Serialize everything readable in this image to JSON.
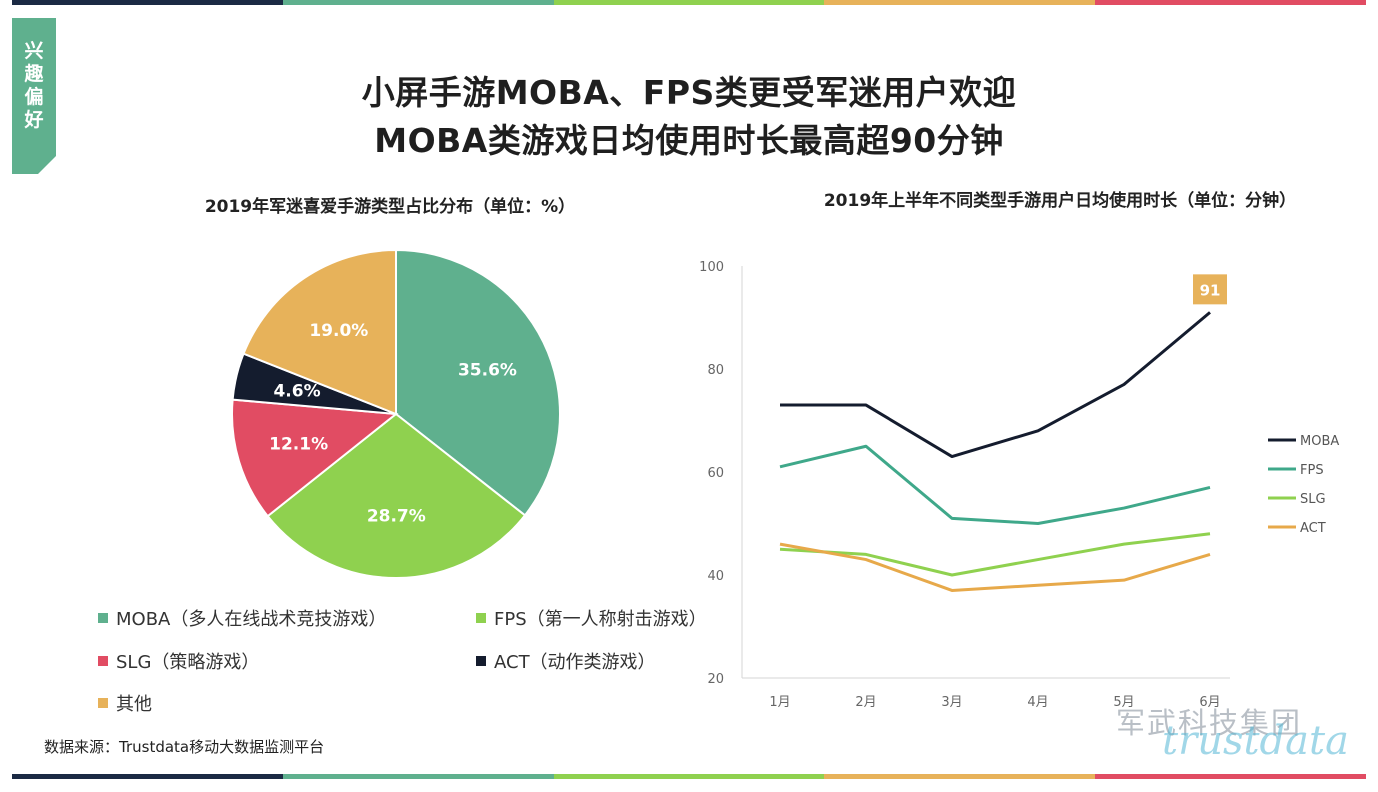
{
  "stripe_colors": [
    "#1b2a44",
    "#5fb08e",
    "#8fd14f",
    "#e7b25a",
    "#e14c63"
  ],
  "side_tab": {
    "label": "兴\n趣\n偏\n好",
    "color": "#5fb08e"
  },
  "title_line1": "小屏手游MOBA、FPS类更受军迷用户欢迎",
  "title_line2": "MOBA类游戏日均使用时长最高超90分钟",
  "footer": "数据来源：Trustdata移动大数据监测平台",
  "watermark": {
    "cn": "军武科技集团",
    "en": "trustdata"
  },
  "chart_data": [
    {
      "type": "pie",
      "title": "2019年军迷喜爱手游类型占比分布（单位：%）",
      "slices": [
        {
          "label": "35.6%",
          "value": 35.6,
          "color": "#5fb08e",
          "text_color": "#ffffff"
        },
        {
          "label": "28.7%",
          "value": 28.7,
          "color": "#8fd14f",
          "text_color": "#ffffff"
        },
        {
          "label": "12.1%",
          "value": 12.1,
          "color": "#e14c63",
          "text_color": "#ffffff"
        },
        {
          "label": "4.6%",
          "value": 4.6,
          "color": "#141c2e",
          "text_color": "#ffffff"
        },
        {
          "label": "19.0%",
          "value": 19.0,
          "color": "#e7b25a",
          "text_color": "#ffffff"
        }
      ],
      "legend": [
        {
          "name": "MOBA（多人在线战术竞技游戏）",
          "color": "#5fb08e"
        },
        {
          "name": "FPS（第一人称射击游戏）",
          "color": "#8fd14f"
        },
        {
          "name": "SLG（策略游戏）",
          "color": "#e14c63"
        },
        {
          "name": "ACT（动作类游戏）",
          "color": "#141c2e"
        },
        {
          "name": "其他",
          "color": "#e7b25a"
        }
      ]
    },
    {
      "type": "line",
      "title": "2019年上半年不同类型手游用户日均使用时长（单位：分钟）",
      "categories": [
        "1月",
        "2月",
        "3月",
        "4月",
        "5月",
        "6月"
      ],
      "ylim": [
        20,
        100
      ],
      "yticks": [
        20,
        40,
        60,
        80,
        100
      ],
      "series": [
        {
          "name": "MOBA",
          "values": [
            73,
            73,
            63,
            68,
            77,
            91
          ],
          "color": "#141c2e"
        },
        {
          "name": "FPS",
          "values": [
            61,
            65,
            51,
            50,
            53,
            57
          ],
          "color": "#3fa88a"
        },
        {
          "name": "SLG",
          "values": [
            45,
            44,
            40,
            43,
            46,
            48
          ],
          "color": "#8fd14f"
        },
        {
          "name": "ACT",
          "values": [
            46,
            43,
            37,
            38,
            39,
            44
          ],
          "color": "#e7a94a"
        }
      ],
      "annotation": {
        "text": "91",
        "series": "MOBA",
        "index": 5,
        "color": "#e7b25a"
      },
      "legend_position": "right"
    }
  ]
}
